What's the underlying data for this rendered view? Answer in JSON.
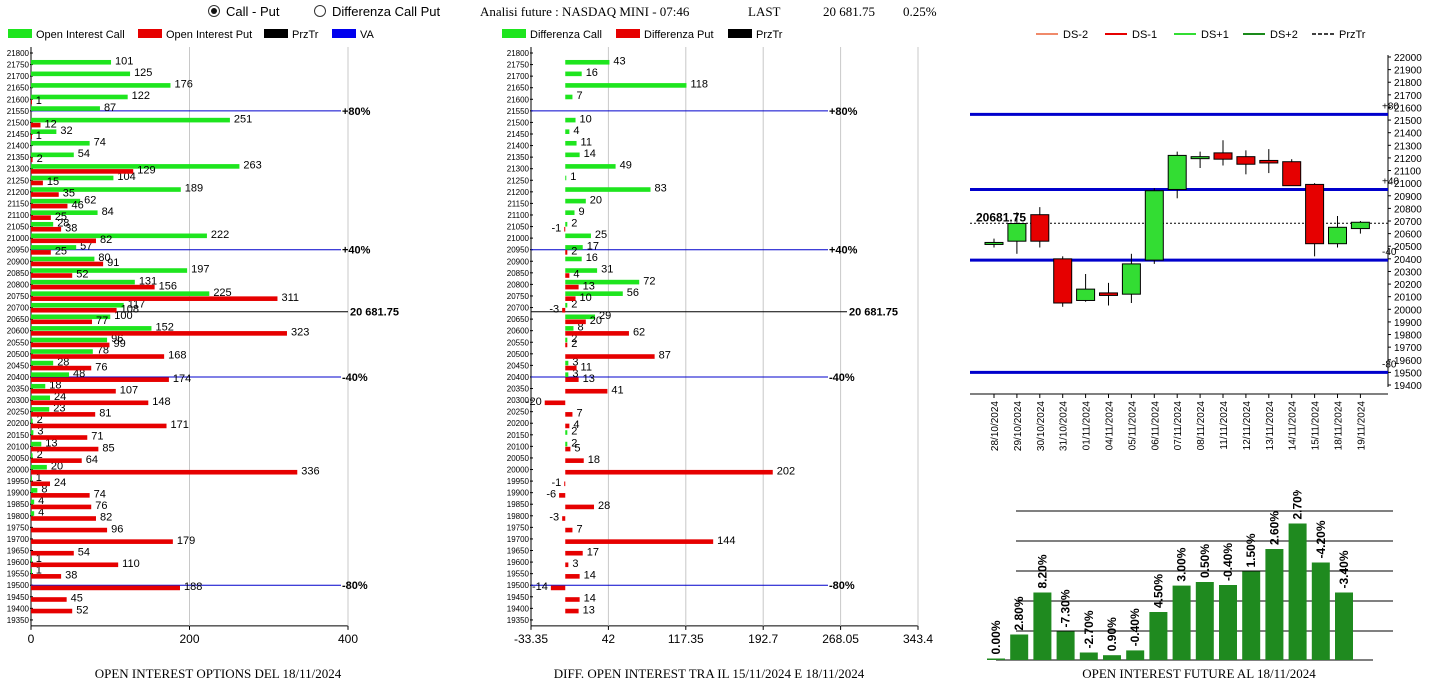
{
  "header": {
    "radio_call_put": "Call - Put",
    "radio_diff": "Differenza Call Put",
    "title": "Analisi future : NASDAQ MINI - 07:46",
    "last_label": "LAST",
    "last_value": "20 681.75",
    "change": "0.25%"
  },
  "colors": {
    "call": "#1ee51e",
    "put": "#e60000",
    "prztr": "#000000",
    "va": "#0000ee",
    "pos_bar": "#1f8a1f"
  },
  "chart_data": [
    {
      "id": "oi",
      "type": "bar",
      "orientation": "horizontal",
      "title": "OPEN INTEREST OPTIONS DEL 18/11/2024",
      "legend": [
        "Open Interest Call",
        "Open Interest Put",
        "PrzTr",
        "VA"
      ],
      "strikes": [
        21800,
        21750,
        21700,
        21650,
        21600,
        21550,
        21500,
        21450,
        21400,
        21350,
        21300,
        21250,
        21200,
        21150,
        21100,
        21050,
        21000,
        20950,
        20900,
        20850,
        20800,
        20750,
        20700,
        20650,
        20600,
        20550,
        20500,
        20450,
        20400,
        20350,
        20300,
        20250,
        20200,
        20150,
        20100,
        20050,
        20000,
        19950,
        19900,
        19850,
        19800,
        19750,
        19700,
        19650,
        19600,
        19550,
        19500,
        19450,
        19400,
        19350
      ],
      "series": [
        {
          "name": "Open Interest Call",
          "values": [
            null,
            101,
            125,
            176,
            122,
            87,
            251,
            32,
            74,
            54,
            263,
            104,
            189,
            62,
            84,
            28,
            222,
            57,
            80,
            197,
            131,
            225,
            117,
            100,
            152,
            96,
            78,
            28,
            48,
            18,
            24,
            23,
            2,
            3,
            13,
            2,
            20,
            1,
            8,
            4,
            4,
            null,
            null,
            null,
            1,
            1,
            null,
            null,
            null,
            null
          ]
        },
        {
          "name": "Open Interest Put",
          "values": [
            null,
            null,
            null,
            null,
            1,
            null,
            12,
            1,
            null,
            2,
            129,
            15,
            35,
            46,
            25,
            38,
            82,
            25,
            91,
            52,
            156,
            311,
            108,
            77,
            323,
            99,
            168,
            76,
            174,
            107,
            148,
            81,
            171,
            71,
            85,
            64,
            336,
            24,
            74,
            76,
            82,
            96,
            179,
            54,
            110,
            38,
            188,
            45,
            52,
            null
          ]
        }
      ],
      "markers": [
        {
          "label": "+80%",
          "strike": 21550
        },
        {
          "label": "+40%",
          "strike": 20950
        },
        {
          "label": "-40%",
          "strike": 20400
        },
        {
          "label": "-80%",
          "strike": 19500
        }
      ],
      "prztr_label": "20 681.75",
      "xticks": [
        "0",
        "200",
        "400"
      ],
      "xlim": [
        0,
        400
      ]
    },
    {
      "id": "diff",
      "type": "bar",
      "orientation": "horizontal",
      "title": "DIFF. OPEN INTEREST TRA IL 15/11/2024 E 18/11/2024",
      "legend": [
        "Differenza Call",
        "Differenza Put",
        "PrzTr"
      ],
      "strikes": [
        21800,
        21750,
        21700,
        21650,
        21600,
        21550,
        21500,
        21450,
        21400,
        21350,
        21300,
        21250,
        21200,
        21150,
        21100,
        21050,
        21000,
        20950,
        20900,
        20850,
        20800,
        20750,
        20700,
        20650,
        20600,
        20550,
        20500,
        20450,
        20400,
        20350,
        20300,
        20250,
        20200,
        20150,
        20100,
        20050,
        20000,
        19950,
        19900,
        19850,
        19800,
        19750,
        19700,
        19650,
        19600,
        19550,
        19500,
        19450,
        19400,
        19350
      ],
      "series": [
        {
          "name": "Differenza Call",
          "values": [
            null,
            43,
            16,
            118,
            7,
            null,
            10,
            4,
            11,
            14,
            49,
            1,
            83,
            20,
            9,
            2,
            25,
            17,
            16,
            31,
            72,
            56,
            2,
            29,
            8,
            2,
            null,
            3,
            3,
            null,
            null,
            null,
            null,
            2,
            2,
            null,
            null,
            null,
            null,
            null,
            null,
            null,
            null,
            null,
            null,
            null,
            null,
            null,
            null,
            null
          ]
        },
        {
          "name": "Differenza Put",
          "values": [
            null,
            null,
            null,
            null,
            null,
            null,
            null,
            null,
            null,
            null,
            null,
            null,
            null,
            null,
            null,
            -1,
            null,
            2,
            null,
            4,
            13,
            10,
            -3,
            20,
            62,
            2,
            87,
            11,
            13,
            41,
            -20,
            7,
            4,
            null,
            5,
            18,
            202,
            -1,
            -6,
            28,
            -3,
            7,
            144,
            17,
            3,
            14,
            -14,
            14,
            13,
            null
          ]
        }
      ],
      "markers": [
        {
          "label": "+80%",
          "strike": 21550
        },
        {
          "label": "+40%",
          "strike": 20950
        },
        {
          "label": "-40%",
          "strike": 20400
        },
        {
          "label": "-80%",
          "strike": 19500
        }
      ],
      "prztr_label": "20 681.75",
      "xticks": [
        "-33.35",
        "42",
        "117.35",
        "192.7",
        "268.05",
        "343.4"
      ],
      "xlim": [
        -33.35,
        343.4
      ]
    },
    {
      "id": "candles",
      "type": "candlestick",
      "legend": [
        "DS-2",
        "DS-1",
        "DS+1",
        "DS+2",
        "PrzTr"
      ],
      "legend_colors": [
        "#f08a6a",
        "#e60000",
        "#33dd33",
        "#1a8a1a",
        "#000000"
      ],
      "dates": [
        "28/10/2024",
        "29/10/2024",
        "30/10/2024",
        "31/10/2024",
        "01/11/2024",
        "04/11/2024",
        "05/11/2024",
        "06/11/2024",
        "07/11/2024",
        "08/11/2024",
        "11/11/2024",
        "12/11/2024",
        "13/11/2024",
        "14/11/2024",
        "15/11/2024",
        "18/11/2024",
        "19/11/2024"
      ],
      "ohlc": [
        [
          20520,
          20560,
          20490,
          20530
        ],
        [
          20540,
          20770,
          20440,
          20680
        ],
        [
          20750,
          20810,
          20490,
          20540
        ],
        [
          20400,
          20420,
          20020,
          20050
        ],
        [
          20070,
          20280,
          20060,
          20160
        ],
        [
          20130,
          20210,
          20030,
          20110
        ],
        [
          20120,
          20440,
          20050,
          20360
        ],
        [
          20390,
          20960,
          20360,
          20940
        ],
        [
          20950,
          21250,
          20880,
          21220
        ],
        [
          21210,
          21250,
          21120,
          21210
        ],
        [
          21240,
          21340,
          21140,
          21190
        ],
        [
          21210,
          21260,
          21070,
          21150
        ],
        [
          21180,
          21270,
          21080,
          21160
        ],
        [
          21170,
          21190,
          20990,
          20980
        ],
        [
          20990,
          21000,
          20420,
          20520
        ],
        [
          20520,
          20740,
          20490,
          20650
        ],
        [
          20640,
          20700,
          20600,
          20690
        ]
      ],
      "ylim": [
        19400,
        22000
      ],
      "yticks": [
        22000,
        21900,
        21800,
        21700,
        21600,
        21500,
        21400,
        21300,
        21200,
        21100,
        21000,
        20900,
        20800,
        20700,
        20600,
        20500,
        20400,
        20300,
        20200,
        20100,
        20000,
        19900,
        19800,
        19700,
        19600,
        19500,
        19400
      ],
      "levels": [
        {
          "label": "+80",
          "value": 21545
        },
        {
          "label": "+40",
          "value": 20950
        },
        {
          "label": "-40",
          "value": 20390
        },
        {
          "label": "-80",
          "value": 19500
        }
      ],
      "prztr_label": "20681.75",
      "prztr": 20681.75
    },
    {
      "id": "oi_future",
      "type": "bar",
      "title": "OPEN INTEREST FUTURE AL 18/11/2024",
      "labels": [
        "0.00%",
        "2.80%",
        "8.20%",
        "-7.30%",
        "-2.70%",
        "0.90%",
        "-0.40%",
        "4.50%",
        "3.00%",
        "0.50%",
        "-0.40%",
        "1.50%",
        "2.60%",
        "2.70%",
        "-4.20%",
        "-3.40%"
      ],
      "values": [
        0.5,
        8.5,
        22.5,
        9.5,
        2.5,
        1.6,
        3.2,
        16.0,
        24.8,
        26.0,
        25.0,
        29.5,
        37.0,
        45.5,
        32.5,
        22.5
      ],
      "ylim": [
        0,
        50
      ]
    }
  ]
}
